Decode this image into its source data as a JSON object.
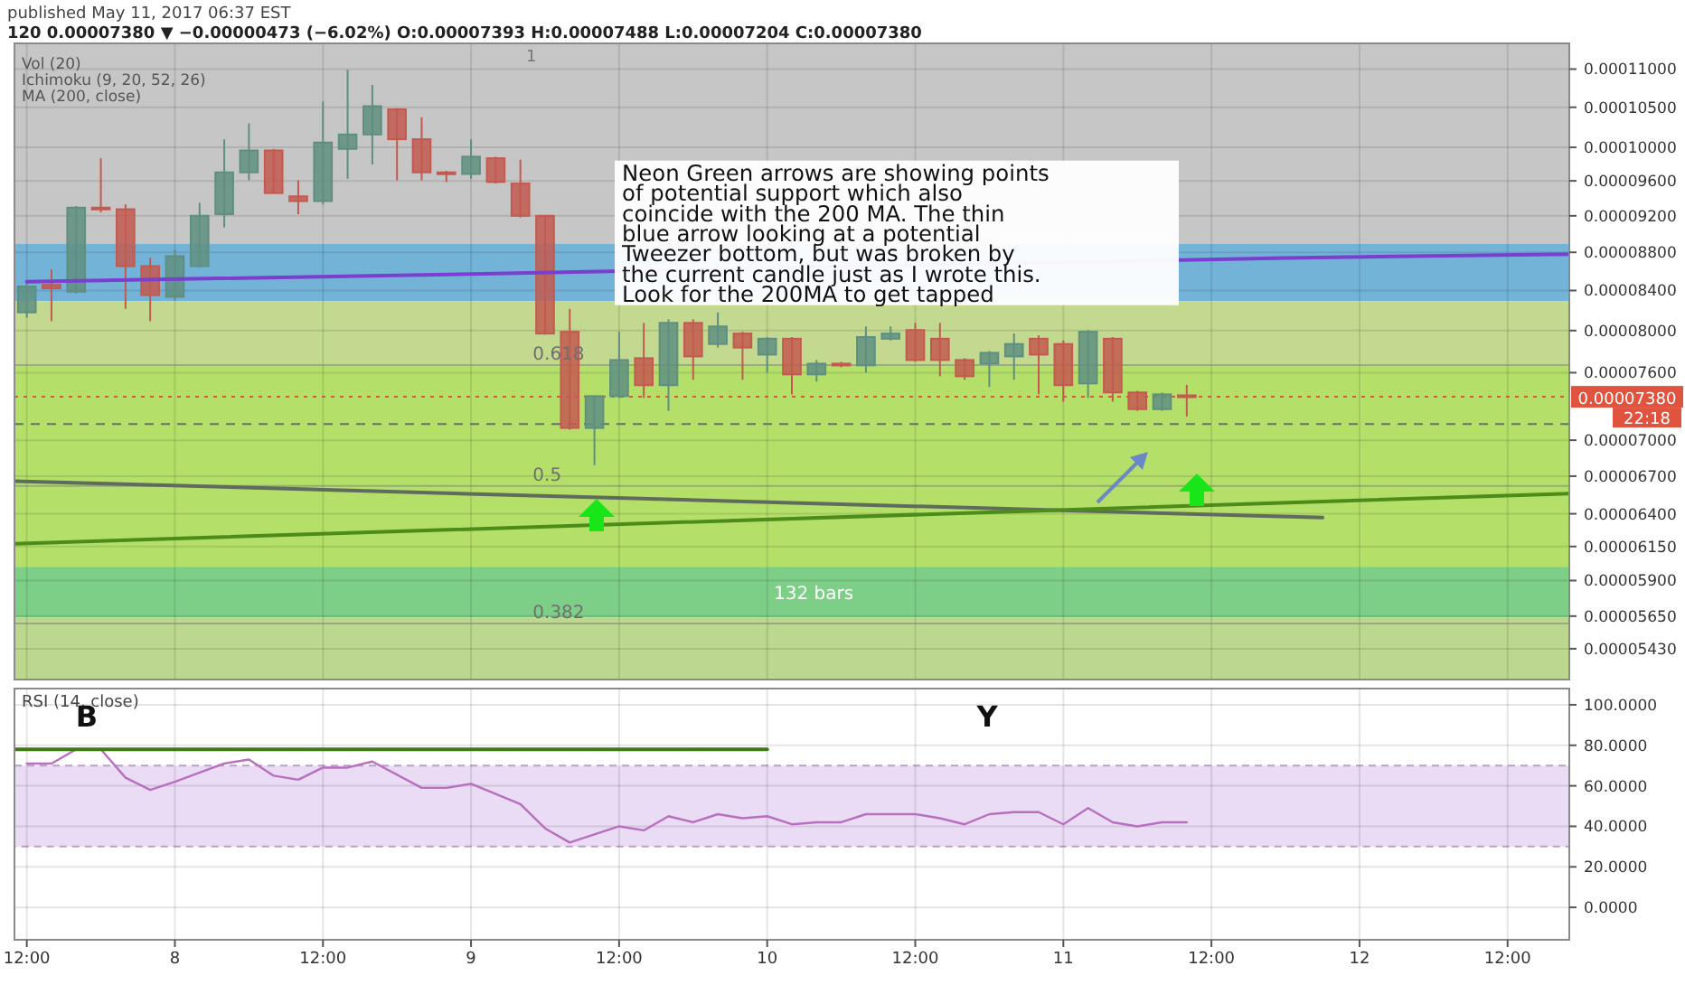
{
  "chart_data": [
    {
      "type": "candlestick",
      "subtitle": "120  0.00007380 ▼ −0.00000473 (−6.02%)  O:0.00007393  H:0.00007488  L:0.00007204  C:0.00007380",
      "annotations": [
        "published May 11, 2017 06:37 EST",
        "Vol (20)",
        "Ichimoku (9, 20, 52, 26)",
        "MA (200, close)",
        "Neon Green arrows are showing points\nof potential support which also\ncoincide with the 200 MA. The thin\nblue arrow looking at a potential\nTweezer bottom, but was broken by\nthe current candle just as I wrote this.\nLook for the 200MA to get tapped",
        "22:18",
        "1",
        {
          "text": "0.618",
          "x": "2017-05-09T05:00",
          "y": 7.67e-05
        },
        {
          "text": "0.5",
          "x": "2017-05-09T05:00",
          "y": 6.62e-05
        },
        {
          "text": "0.382",
          "x": "2017-05-09T05:00",
          "y": 5.6e-05
        }
      ],
      "x": [
        "2017-05-07T12:00",
        "2017-05-07T14:00",
        "2017-05-07T16:00",
        "2017-05-07T18:00",
        "2017-05-07T20:00",
        "2017-05-07T22:00",
        "2017-05-08T00:00",
        "2017-05-08T02:00",
        "2017-05-08T04:00",
        "2017-05-08T06:00",
        "2017-05-08T08:00",
        "2017-05-08T10:00",
        "2017-05-08T12:00",
        "2017-05-08T14:00",
        "2017-05-08T16:00",
        "2017-05-08T18:00",
        "2017-05-08T20:00",
        "2017-05-08T22:00",
        "2017-05-09T00:00",
        "2017-05-09T02:00",
        "2017-05-09T04:00",
        "2017-05-09T06:00",
        "2017-05-09T08:00",
        "2017-05-09T10:00",
        "2017-05-09T12:00",
        "2017-05-09T14:00",
        "2017-05-09T16:00",
        "2017-05-09T18:00",
        "2017-05-09T20:00",
        "2017-05-09T22:00",
        "2017-05-10T00:00",
        "2017-05-10T02:00",
        "2017-05-10T04:00",
        "2017-05-10T06:00",
        "2017-05-10T08:00",
        "2017-05-10T10:00",
        "2017-05-10T12:00",
        "2017-05-10T14:00",
        "2017-05-10T16:00",
        "2017-05-10T18:00",
        "2017-05-10T20:00",
        "2017-05-10T22:00",
        "2017-05-11T00:00",
        "2017-05-11T02:00",
        "2017-05-11T04:00",
        "2017-05-11T06:00",
        "2017-05-11T08:00",
        "2017-05-11T10:00"
      ],
      "ohlc": [
        [
          8.179e-05,
          8.476e-05,
          8.127e-05,
          8.441e-05
        ],
        [
          8.458e-05,
          8.618e-05,
          8.092e-05,
          8.423e-05
        ],
        [
          8.388e-05,
          9.31e-05,
          8.37e-05,
          9.292e-05
        ],
        [
          9.292e-05,
          9.868e-05,
          9.237e-05,
          9.274e-05
        ],
        [
          9.274e-05,
          9.329e-05,
          8.214e-05,
          8.653e-05
        ],
        [
          8.653e-05,
          8.742e-05,
          8.092e-05,
          8.353e-05
        ],
        [
          8.336e-05,
          8.831e-05,
          8.301e-05,
          8.759e-05
        ],
        [
          8.653e-05,
          9.347e-05,
          8.636e-05,
          9.2e-05
        ],
        [
          9.218e-05,
          0.00010099,
          9.071e-05,
          9.7e-05
        ],
        [
          9.7e-05,
          0.00010296,
          9.606e-05,
          9.962e-05
        ],
        [
          9.962e-05,
          9.981e-05,
          9.458e-05,
          9.458e-05
        ],
        [
          9.421e-05,
          9.606e-05,
          9.218e-05,
          9.366e-05
        ],
        [
          9.366e-05,
          0.00010574,
          9.329e-05,
          0.00010059
        ],
        [
          9.981e-05,
          0.0001099,
          9.624e-05,
          0.00010158
        ],
        [
          0.00010158,
          0.0001079,
          9.793e-05,
          0.00010514
        ],
        [
          0.00010474,
          0.0001049,
          9.606e-05,
          0.00010099
        ],
        [
          0.00010099,
          0.00010374,
          9.606e-05,
          9.7e-05
        ],
        [
          9.7e-05,
          9.718e-05,
          9.587e-05,
          9.681e-05
        ],
        [
          9.681e-05,
          0.00010099,
          9.624e-05,
          9.887e-05
        ],
        [
          9.868e-05,
          9.887e-05,
          9.569e-05,
          9.587e-05
        ],
        [
          9.569e-05,
          9.85e-05,
          9.18e-05,
          9.2e-05
        ],
        [
          9.2e-05,
          9.21e-05,
          7.96e-05,
          7.971e-05
        ],
        [
          7.988e-05,
          8.214e-05,
          7.09e-05,
          7.105e-05
        ],
        [
          7.105e-05,
          7.386e-05,
          6.79e-05,
          7.386e-05
        ],
        [
          7.386e-05,
          7.988e-05,
          7.369e-05,
          7.718e-05
        ],
        [
          7.735e-05,
          8.075e-05,
          7.369e-05,
          7.485e-05
        ],
        [
          7.485e-05,
          8.11e-05,
          7.254e-05,
          8.075e-05
        ],
        [
          8.075e-05,
          8.11e-05,
          7.534e-05,
          7.752e-05
        ],
        [
          7.87e-05,
          8.179e-05,
          7.836e-05,
          8.04e-05
        ],
        [
          7.971e-05,
          7.988e-05,
          7.534e-05,
          7.836e-05
        ],
        [
          7.769e-05,
          7.937e-05,
          7.6e-05,
          7.921e-05
        ],
        [
          7.921e-05,
          7.937e-05,
          7.402e-05,
          7.584e-05
        ],
        [
          7.584e-05,
          7.718e-05,
          7.518e-05,
          7.684e-05
        ],
        [
          7.684e-05,
          7.701e-05,
          7.651e-05,
          7.668e-05
        ],
        [
          7.668e-05,
          8.04e-05,
          7.6e-05,
          7.937e-05
        ],
        [
          7.921e-05,
          8.04e-05,
          7.904e-05,
          7.971e-05
        ],
        [
          8.005e-05,
          8.075e-05,
          7.701e-05,
          7.718e-05
        ],
        [
          7.921e-05,
          8.075e-05,
          7.567e-05,
          7.718e-05
        ],
        [
          7.718e-05,
          7.735e-05,
          7.534e-05,
          7.567e-05
        ],
        [
          7.684e-05,
          7.803e-05,
          7.468e-05,
          7.786e-05
        ],
        [
          7.752e-05,
          7.971e-05,
          7.534e-05,
          7.87e-05
        ],
        [
          7.921e-05,
          7.954e-05,
          7.402e-05,
          7.769e-05
        ],
        [
          7.87e-05,
          7.904e-05,
          7.336e-05,
          7.485e-05
        ],
        [
          7.501e-05,
          8.005e-05,
          7.369e-05,
          7.988e-05
        ],
        [
          7.921e-05,
          7.937e-05,
          7.336e-05,
          7.419e-05
        ],
        [
          7.419e-05,
          7.435e-05,
          7.254e-05,
          7.27e-05
        ],
        [
          7.27e-05,
          7.419e-05,
          7.254e-05,
          7.402e-05
        ],
        [
          7.393e-05,
          7.488e-05,
          7.204e-05,
          7.38e-05
        ]
      ],
      "series": [
        {
          "type": "line",
          "color": "#7b3fd0",
          "x": [
            "2017-05-07T12:00",
            "2017-05-09T00:00",
            "2017-05-11T18:00",
            "2017-05-12T17:00"
          ],
          "values": [
            8.49e-05,
            8.57e-05,
            8.74e-05,
            8.78e-05
          ]
        },
        {
          "type": "line",
          "color": "#5f6b5f",
          "x": [
            "2017-05-07T11:00",
            "2017-05-11T21:00"
          ],
          "values": [
            6.66e-05,
            6.37e-05
          ]
        },
        {
          "type": "line",
          "color": "#4c8c1a",
          "x": [
            "2017-05-07T11:00",
            "2017-05-12T17:00"
          ],
          "values": [
            6.17e-05,
            6.56e-05
          ]
        }
      ],
      "bands": [
        {
          "axis": "y",
          "from": 8.89e-05,
          "to": 0.0001135,
          "color": "#c6c6c6"
        },
        {
          "axis": "y",
          "from": 8.29e-05,
          "to": 8.89e-05,
          "color": "#74b3d8"
        },
        {
          "axis": "y",
          "from": 7.67e-05,
          "to": 8.29e-05,
          "color": "#c2d98f"
        },
        {
          "axis": "y",
          "from": 6e-05,
          "to": 7.67e-05,
          "color": "#b4e06a"
        },
        {
          "axis": "y",
          "from": 5.64e-05,
          "to": 6e-05,
          "color": "#7dcf88",
          "label": "132 bars"
        },
        {
          "axis": "y",
          "from": 5.23e-05,
          "to": 5.64e-05,
          "color": "#bcd78e"
        }
      ],
      "ref_lines": [
        {
          "axis": "y",
          "value": 7.67e-05
        },
        {
          "axis": "y",
          "value": 6.62e-05
        },
        {
          "axis": "y",
          "value": 5.6e-05
        },
        {
          "axis": "y",
          "value": 7.14e-05,
          "color": "#6d6d6d",
          "line_style": "dashed"
        },
        {
          "axis": "y",
          "value": 7.38e-05,
          "label": "0.00007380",
          "color": "#e0533f",
          "line_style": "dotted"
        }
      ],
      "xlim": [
        "2017-05-07T11:00",
        "2017-05-12T17:00"
      ],
      "xticks": [
        {
          "value": "2017-05-07T12:00",
          "label": null
        },
        {
          "value": "2017-05-08",
          "label": null
        },
        {
          "value": "2017-05-08T12:00",
          "label": null
        },
        {
          "value": "2017-05-09",
          "label": null
        },
        {
          "value": "2017-05-09T12:00",
          "label": null
        },
        {
          "value": "2017-05-10",
          "label": null
        },
        {
          "value": "2017-05-10T12:00",
          "label": null
        },
        {
          "value": "2017-05-11",
          "label": null
        },
        {
          "value": "2017-05-11T12:00",
          "label": null
        },
        {
          "value": "2017-05-12",
          "label": null
        },
        {
          "value": "2017-05-12T12:00",
          "label": null
        }
      ],
      "log": true,
      "ylim": [
        5.23e-05,
        0.0001135
      ],
      "yticks": [
        {
          "value": 0.00011,
          "label": "0.00011000"
        },
        {
          "value": 0.000105,
          "label": "0.00010500"
        },
        {
          "value": 0.0001,
          "label": "0.00010000"
        },
        {
          "value": 9.6e-05,
          "label": "0.00009600"
        },
        {
          "value": 9.2e-05,
          "label": "0.00009200"
        },
        {
          "value": 8.8e-05,
          "label": "0.00008800"
        },
        {
          "value": 8.4e-05,
          "label": "0.00008400"
        },
        {
          "value": 8e-05,
          "label": "0.00008000"
        },
        {
          "value": 7.6e-05,
          "label": "0.00007600"
        },
        {
          "value": 7e-05,
          "label": "0.00007000"
        },
        {
          "value": 6.7e-05,
          "label": "0.00006700"
        },
        {
          "value": 6.4e-05,
          "label": "0.00006400"
        },
        {
          "value": 6.15e-05,
          "label": "0.00006150"
        },
        {
          "value": 5.9e-05,
          "label": "0.00005900"
        },
        {
          "value": 5.65e-05,
          "label": "0.00005650"
        },
        {
          "value": 5.43e-05,
          "label": "0.00005430"
        }
      ],
      "grid": true,
      "tick_labels": "y"
    },
    {
      "type": "line",
      "title": "RSI (14, close)",
      "annotations": [
        "B",
        "Y"
      ],
      "series": [
        {
          "color": "#b86fc0",
          "x": [
            "2017-05-07T12:00",
            "2017-05-07T14:00",
            "2017-05-07T16:00",
            "2017-05-07T18:00",
            "2017-05-07T20:00",
            "2017-05-07T22:00",
            "2017-05-08T00:00",
            "2017-05-08T04:00",
            "2017-05-08T06:00",
            "2017-05-08T08:00",
            "2017-05-08T10:00",
            "2017-05-08T12:00",
            "2017-05-08T14:00",
            "2017-05-08T16:00",
            "2017-05-08T20:00",
            "2017-05-08T22:00",
            "2017-05-09T00:00",
            "2017-05-09T02:00",
            "2017-05-09T04:00",
            "2017-05-09T06:00",
            "2017-05-09T08:00",
            "2017-05-09T10:00",
            "2017-05-09T12:00",
            "2017-05-09T14:00",
            "2017-05-09T16:00",
            "2017-05-09T18:00",
            "2017-05-09T20:00",
            "2017-05-09T22:00",
            "2017-05-10T00:00",
            "2017-05-10T02:00",
            "2017-05-10T04:00",
            "2017-05-10T06:00",
            "2017-05-10T08:00",
            "2017-05-10T10:00",
            "2017-05-10T12:00",
            "2017-05-10T14:00",
            "2017-05-10T16:00",
            "2017-05-10T18:00",
            "2017-05-10T20:00",
            "2017-05-10T22:00",
            "2017-05-11T00:00",
            "2017-05-11T02:00",
            "2017-05-11T04:00",
            "2017-05-11T06:00",
            "2017-05-11T08:00",
            "2017-05-11T10:00"
          ],
          "values": [
            71,
            71,
            78,
            78,
            64,
            58,
            62,
            71,
            73,
            65,
            63,
            69,
            69,
            72,
            59,
            59,
            61,
            56,
            51,
            39,
            32,
            36,
            40,
            38,
            45,
            42,
            46,
            44,
            45,
            41,
            42,
            42,
            46,
            46,
            46,
            44,
            41,
            46,
            47,
            47,
            41,
            49,
            42,
            40,
            42,
            42
          ]
        },
        {
          "color": "#3d7a12",
          "x": [
            "2017-05-07T11:00",
            "2017-05-10T00:00"
          ],
          "values": [
            78,
            78
          ]
        }
      ],
      "bands": [
        {
          "axis": "y",
          "from": 30,
          "to": 70,
          "color": "#eadcf5"
        }
      ],
      "xlim": [
        "2017-05-07T11:00",
        "2017-05-12T17:00"
      ],
      "xticks": [
        {
          "value": "2017-05-07T12:00",
          "label": "12:00"
        },
        {
          "value": "2017-05-08",
          "label": "8"
        },
        {
          "value": "2017-05-08T12:00",
          "label": "12:00"
        },
        {
          "value": "2017-05-09",
          "label": "9"
        },
        {
          "value": "2017-05-09T12:00",
          "label": "12:00"
        },
        {
          "value": "2017-05-10",
          "label": "10"
        },
        {
          "value": "2017-05-10T12:00",
          "label": "12:00"
        },
        {
          "value": "2017-05-11",
          "label": "11"
        },
        {
          "value": "2017-05-11T12:00",
          "label": "12:00"
        },
        {
          "value": "2017-05-12",
          "label": "12"
        },
        {
          "value": "2017-05-12T12:00",
          "label": "12:00"
        }
      ],
      "ylim": [
        -16,
        108
      ],
      "yticks": [
        {
          "value": 100,
          "label": "100.0000"
        },
        {
          "value": 80,
          "label": "80.0000"
        },
        {
          "value": 60,
          "label": "60.0000"
        },
        {
          "value": 40,
          "label": "40.0000"
        },
        {
          "value": 20,
          "label": "20.0000"
        },
        {
          "value": 0,
          "label": "0.0000"
        }
      ],
      "grid": true
    }
  ]
}
